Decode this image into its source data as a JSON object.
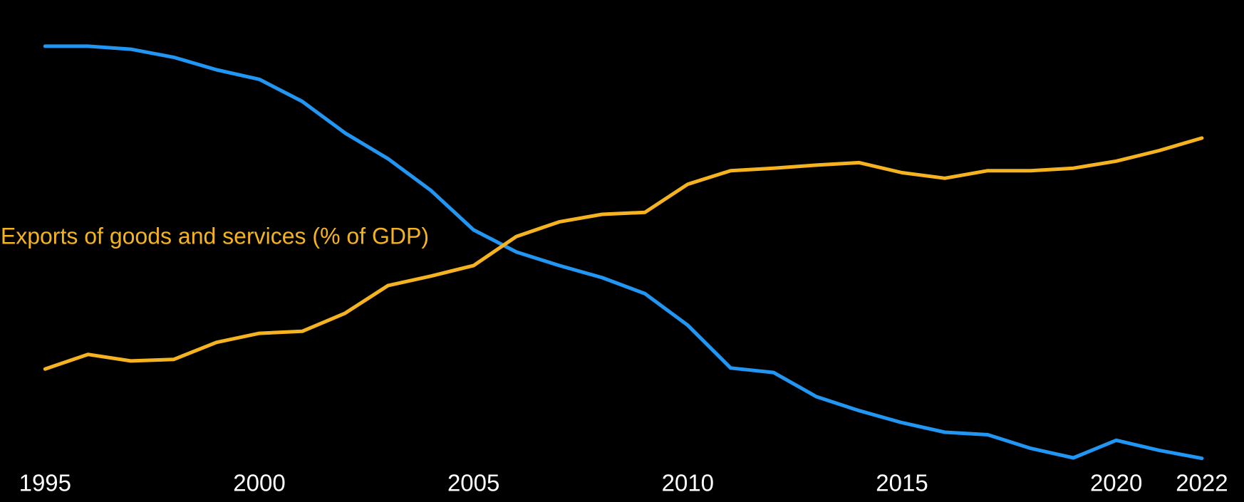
{
  "chart_data": {
    "type": "line",
    "x": [
      1995,
      1996,
      1997,
      1998,
      1999,
      2000,
      2001,
      2002,
      2003,
      2004,
      2005,
      2006,
      2007,
      2008,
      2009,
      2010,
      2011,
      2012,
      2013,
      2014,
      2015,
      2016,
      2017,
      2018,
      2019,
      2020,
      2021,
      2022
    ],
    "xlim": [
      1994.13,
      2022.55
    ],
    "xticks": [
      1995,
      2000,
      2005,
      2010,
      2015,
      2020,
      2022
    ],
    "ylim": [
      0,
      100
    ],
    "grid": false,
    "series": [
      {
        "color": "#2196f3",
        "values": [
          90.8,
          90.8,
          90.2,
          88.6,
          86.1,
          84.2,
          79.8,
          73.5,
          68.4,
          62.1,
          54.2,
          49.8,
          47.1,
          44.7,
          41.5,
          35.2,
          26.7,
          25.8,
          21.0,
          18.2,
          15.8,
          13.9,
          13.4,
          10.7,
          8.8,
          12.3,
          10.3,
          8.7
        ]
      },
      {
        "name": "Exports of goods and services (% of GDP)",
        "color": "#f5b320",
        "values": [
          26.5,
          29.4,
          28.1,
          28.4,
          31.8,
          33.6,
          34.0,
          37.6,
          43.1,
          45.0,
          47.1,
          52.9,
          55.8,
          57.3,
          57.7,
          63.3,
          66.0,
          66.5,
          67.1,
          67.6,
          65.6,
          64.5,
          66.0,
          66.0,
          66.5,
          67.9,
          70.0,
          72.5
        ]
      }
    ]
  }
}
